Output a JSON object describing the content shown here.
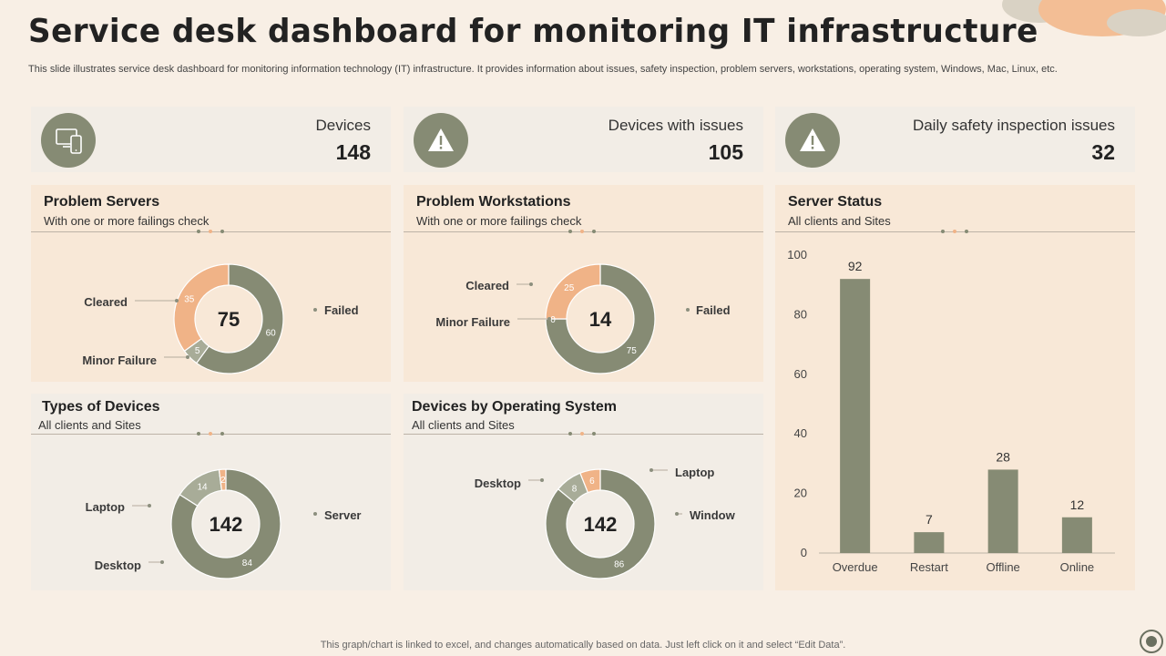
{
  "header": {
    "title": "Service desk dashboard for monitoring IT infrastructure",
    "subtitle": "This slide illustrates service desk dashboard for monitoring information technology (IT) infrastructure. It provides information about issues, safety inspection, problem servers, workstations, operating system, Windows, Mac, Linux, etc."
  },
  "kpis": [
    {
      "label": "Devices",
      "value": "148",
      "icon": "devices-icon"
    },
    {
      "label": "Devices with issues",
      "value": "105",
      "icon": "warning-icon"
    },
    {
      "label": "Daily safety inspection issues",
      "value": "32",
      "icon": "warning-icon"
    }
  ],
  "colors": {
    "olive": "#868b74",
    "peach": "#f0b387",
    "sage": "#a8ac98",
    "card": "#f8e8d7",
    "card_light": "#f2ede6"
  },
  "chart_data": [
    {
      "type": "pie",
      "title": "Problem Servers",
      "subtitle": "With one or more failings check",
      "center": "75",
      "categories": [
        "Failed",
        "Minor Failure",
        "Cleared"
      ],
      "values": [
        60,
        5,
        35
      ],
      "colors": [
        "#868b74",
        "#a8ac98",
        "#f0b387"
      ]
    },
    {
      "type": "pie",
      "title": "Problem Workstations",
      "subtitle": "With one or more failings check",
      "center": "14",
      "categories": [
        "Failed",
        "Minor Failure",
        "Cleared"
      ],
      "values": [
        75,
        0,
        25
      ],
      "colors": [
        "#868b74",
        "#a8ac98",
        "#f0b387"
      ]
    },
    {
      "type": "pie",
      "title": "Types of Devices",
      "subtitle": "All clients and Sites",
      "center": "142",
      "categories": [
        "Server",
        "Desktop",
        "Laptop"
      ],
      "values": [
        84,
        14,
        2
      ],
      "colors": [
        "#868b74",
        "#a8ac98",
        "#f0b387"
      ]
    },
    {
      "type": "pie",
      "title": "Devices by Operating System",
      "subtitle": "All clients and Sites",
      "center": "142",
      "categories": [
        "Window",
        "Desktop",
        "Laptop"
      ],
      "values": [
        86,
        8,
        6
      ],
      "colors": [
        "#868b74",
        "#a8ac98",
        "#f0b387"
      ]
    },
    {
      "type": "bar",
      "title": "Server Status",
      "subtitle": "All clients and Sites",
      "categories": [
        "Overdue",
        "Restart",
        "Offline",
        "Online"
      ],
      "values": [
        92,
        7,
        28,
        12
      ],
      "ylim": [
        0,
        100
      ],
      "yticks": [
        0,
        20,
        40,
        60,
        80,
        100
      ],
      "color": "#868b74"
    }
  ],
  "footer": {
    "note": "This graph/chart is linked to excel, and changes automatically based on data. Just left click on it and select “Edit Data”."
  }
}
